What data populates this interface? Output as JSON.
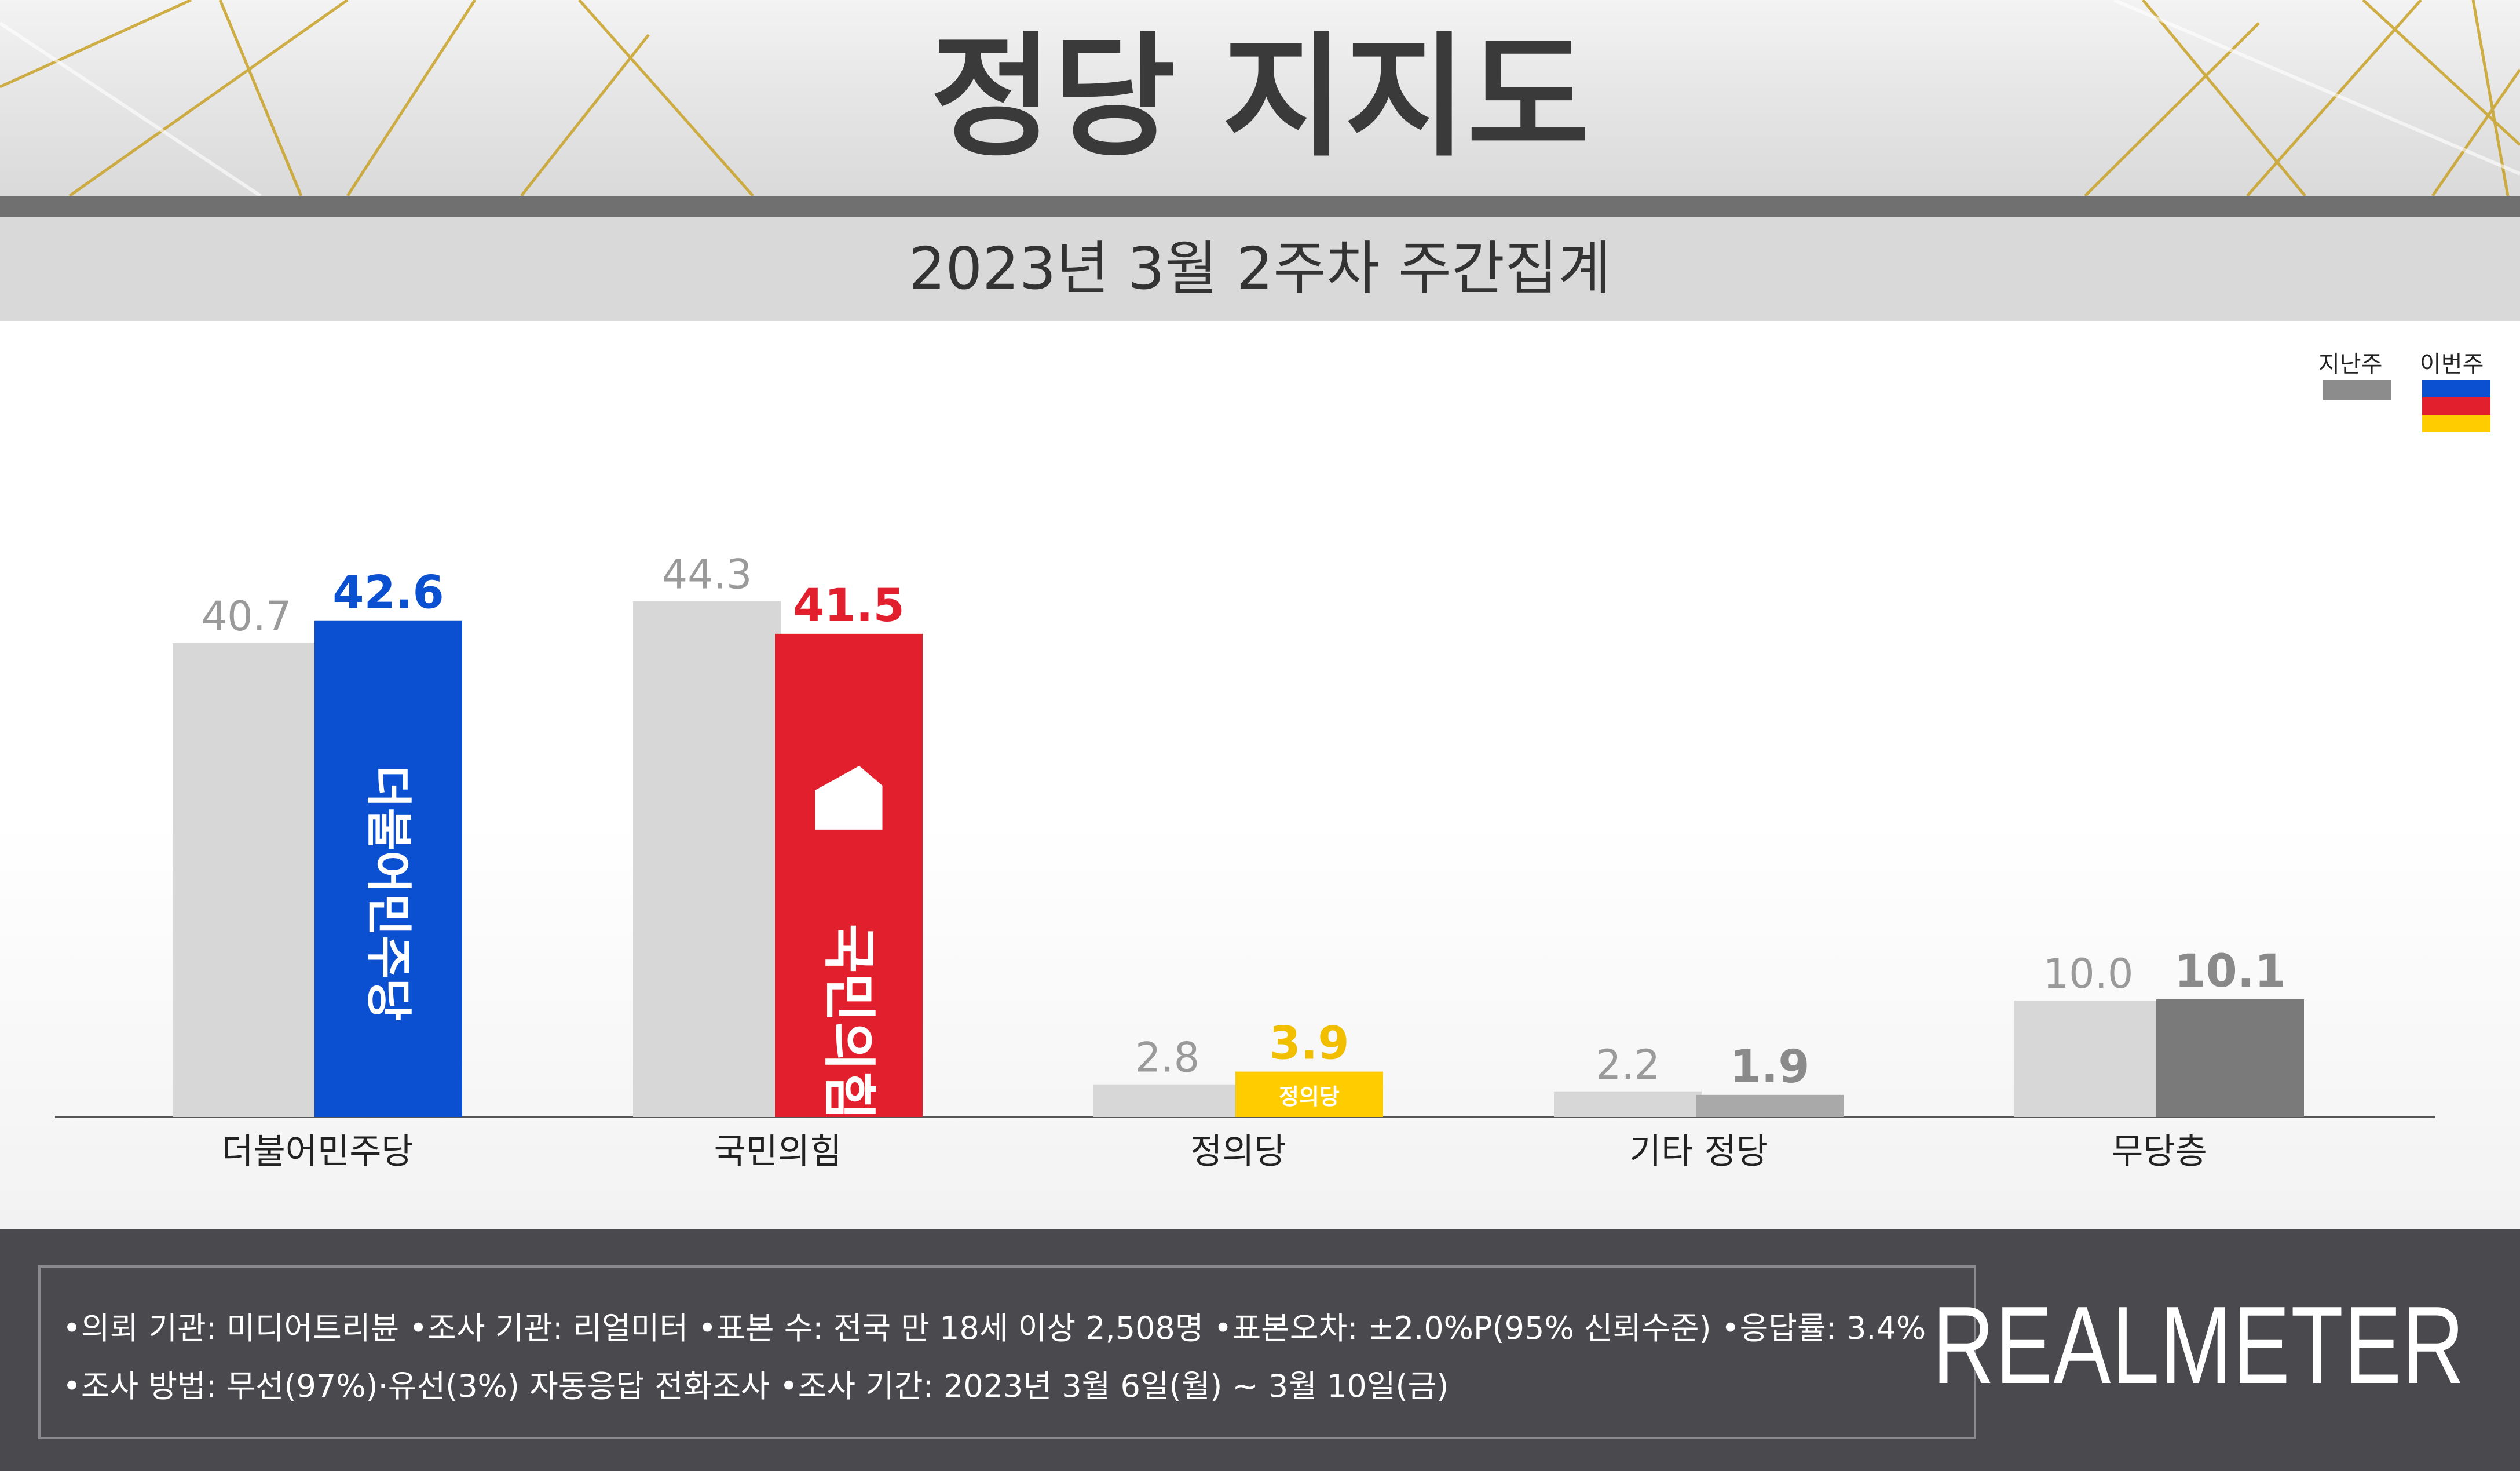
{
  "header": {
    "title": "정당 지지도",
    "subtitle": "2023년 3월 2주차 주간집계"
  },
  "legend": {
    "last_week": "지난주",
    "this_week": "이번주"
  },
  "colors": {
    "last_week": "#d7d7d7",
    "democratic": "#0a50d0",
    "ppp": "#e21f2c",
    "justice": "#ffcc00",
    "other": "#a9a9a9",
    "independent": "#7a7a7a",
    "label_dem": "#0a50d0",
    "label_ppp": "#e21f2c",
    "label_justice": "#f2bf00",
    "label_gray": "#8a8a8a"
  },
  "chart_data": {
    "type": "bar",
    "title": "정당 지지도",
    "subtitle": "2023년 3월 2주차 주간집계",
    "categories": [
      "더불어민주당",
      "국민의힘",
      "정의당",
      "기타 정당",
      "무당층"
    ],
    "series": [
      {
        "name": "지난주",
        "values": [
          40.7,
          44.3,
          2.8,
          2.2,
          10.0
        ],
        "labels": [
          "40.7",
          "44.3",
          "2.8",
          "2.2",
          "10.0"
        ]
      },
      {
        "name": "이번주",
        "values": [
          42.6,
          41.5,
          3.9,
          1.9,
          10.1
        ],
        "labels": [
          "42.6",
          "41.5",
          "3.9",
          "1.9",
          "10.1"
        ]
      }
    ],
    "bar_logos": [
      "더불어민주당",
      "국민의힘",
      "정의당",
      "",
      ""
    ],
    "ylim": [
      0,
      50
    ],
    "grid": false,
    "legend_position": "top-right"
  },
  "footer": {
    "note1": "•의뢰 기관: 미디어트리뷴  •조사 기관: 리얼미터 •표본 수: 전국 만 18세 이상 2,508명 •표본오차: ±2.0%P(95% 신뢰수준) •응답률: 3.4%",
    "note2": "•조사 방법: 무선(97%)·유선(3%) 자동응답 전화조사 •조사 기간: 2023년 3월 6일(월) ~ 3월 10일(금)",
    "brand": "REALMETER"
  }
}
